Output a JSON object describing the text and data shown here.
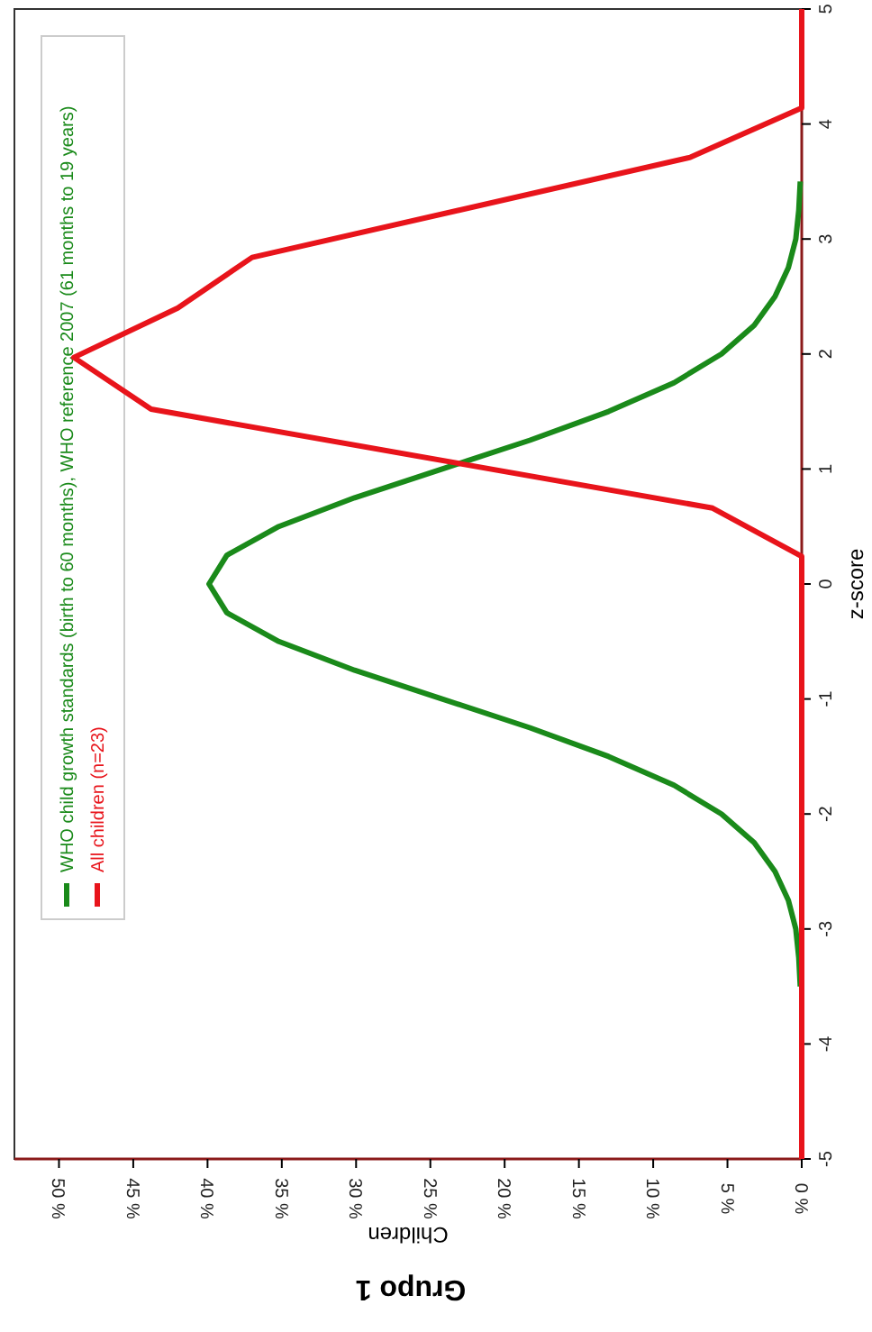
{
  "chart_data": {
    "type": "line",
    "title": "Grupo 1",
    "xlabel": "Children",
    "ylabel": "z-score",
    "ylim": [
      -5,
      5
    ],
    "yticks": [
      -5,
      -4,
      -3,
      -2,
      -1,
      0,
      1,
      2,
      3,
      4,
      5
    ],
    "xlim": [
      53,
      0
    ],
    "xticks": [
      {
        "value": 50,
        "label": "50 %"
      },
      {
        "value": 45,
        "label": "45 %"
      },
      {
        "value": 40,
        "label": "40 %"
      },
      {
        "value": 35,
        "label": "35 %"
      },
      {
        "value": 30,
        "label": "30 %"
      },
      {
        "value": 25,
        "label": "25 %"
      },
      {
        "value": 20,
        "label": "20 %"
      },
      {
        "value": 15,
        "label": "15 %"
      },
      {
        "value": 10,
        "label": "10 %"
      },
      {
        "value": 5,
        "label": "5 %"
      },
      {
        "value": 0,
        "label": "0 %"
      }
    ],
    "grid": false,
    "legend": "top left",
    "marker": "none",
    "line_style": "solid",
    "series": [
      {
        "name": "WHO child growth standards (birth to 60 months), WHO reference 2007 (61 months to 19 years)",
        "color": "#1a8a1a",
        "values": [
          -3.5,
          -3.25,
          -3,
          -2.75,
          -2.5,
          -2.25,
          -2,
          -1.75,
          -1.5,
          -1.25,
          -1,
          -0.75,
          -0.5,
          -0.25,
          0,
          0.25,
          0.5,
          0.75,
          1,
          1.25,
          1.5,
          1.75,
          2,
          2.25,
          2.5,
          2.75,
          3,
          3.25,
          3.5
        ],
        "x": [
          0.1,
          0.2,
          0.4,
          0.9,
          1.8,
          3.2,
          5.4,
          8.6,
          13.0,
          18.3,
          24.2,
          30.1,
          35.2,
          38.7,
          39.9,
          38.7,
          35.2,
          30.1,
          24.2,
          18.3,
          13.0,
          8.6,
          5.4,
          3.2,
          1.8,
          0.9,
          0.4,
          0.2,
          0.1
        ]
      },
      {
        "name": "All children (n=23)",
        "color": "#e8141b",
        "values": [
          -5,
          0.24,
          0.66,
          1.52,
          1.97,
          2.4,
          2.84,
          3.71,
          4.14,
          5
        ],
        "x": [
          0,
          0,
          6.0,
          43.8,
          49.0,
          42.0,
          37.0,
          7.5,
          0,
          0
        ]
      }
    ]
  }
}
